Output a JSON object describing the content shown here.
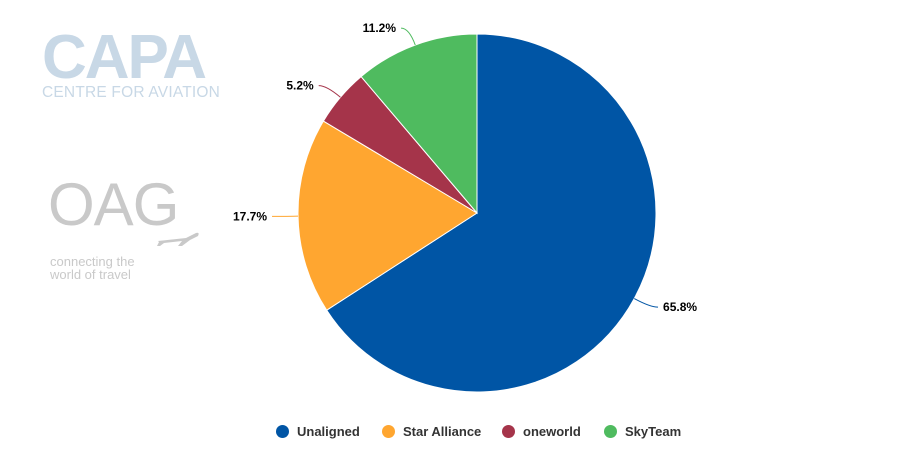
{
  "branding": {
    "capa_mark": "CAPA",
    "capa_sub": "CENTRE FOR AVIATION",
    "oag_mark": "OAG",
    "oag_tagline_1": "connecting the",
    "oag_tagline_2": "world of travel"
  },
  "chart_data": {
    "type": "pie",
    "title": "",
    "slices": [
      {
        "label": "Unaligned",
        "value": 65.8,
        "display": "65.8%",
        "color": "#0055a5"
      },
      {
        "label": "Star Alliance",
        "value": 17.7,
        "display": "17.7%",
        "color": "#ffa630"
      },
      {
        "label": "oneworld",
        "value": 5.2,
        "display": "5.2%",
        "color": "#a5344a"
      },
      {
        "label": "SkyTeam",
        "value": 11.2,
        "display": "11.2%",
        "color": "#4fbb5f"
      }
    ],
    "legend_position": "bottom"
  }
}
